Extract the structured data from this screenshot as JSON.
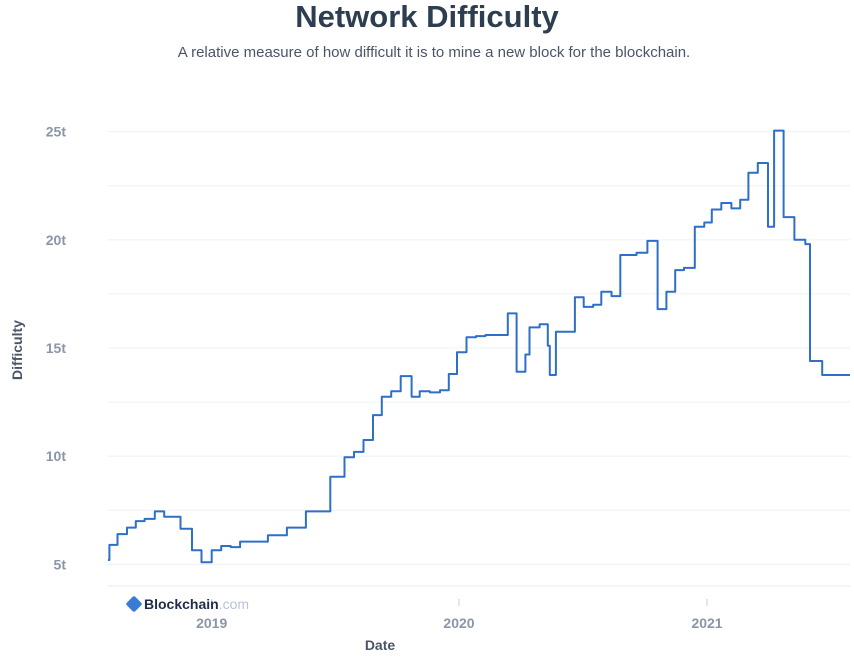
{
  "chart_data": {
    "type": "line",
    "title": "Network Difficulty",
    "subtitle": "A relative measure of how difficult it is to mine a new block for the blockchain.",
    "xlabel": "Date",
    "ylabel": "Difficulty",
    "ylim": [
      4,
      26
    ],
    "yticks": [
      {
        "value": 5,
        "label": "5t"
      },
      {
        "value": 10,
        "label": "10t"
      },
      {
        "value": 15,
        "label": "15t"
      },
      {
        "value": 20,
        "label": "20t"
      },
      {
        "value": 25,
        "label": "25t"
      }
    ],
    "xlim": [
      "2018-08-01",
      "2021-07-31"
    ],
    "xticks": [
      {
        "value": "2019-01-01",
        "label": "2019"
      },
      {
        "value": "2020-01-01",
        "label": "2020"
      },
      {
        "value": "2021-01-01",
        "label": "2021"
      }
    ],
    "grid": true,
    "line_color": "#2e6fc7",
    "series": [
      {
        "step": true,
        "points": [
          [
            "2018-08-01",
            5.2
          ],
          [
            "2018-08-03",
            5.9
          ],
          [
            "2018-08-15",
            6.4
          ],
          [
            "2018-08-29",
            6.7
          ],
          [
            "2018-09-11",
            7.0
          ],
          [
            "2018-09-24",
            7.1
          ],
          [
            "2018-10-09",
            7.45
          ],
          [
            "2018-10-23",
            7.2
          ],
          [
            "2018-11-16",
            6.65
          ],
          [
            "2018-12-03",
            5.65
          ],
          [
            "2018-12-17",
            5.1
          ],
          [
            "2019-01-01",
            5.65
          ],
          [
            "2019-01-15",
            5.85
          ],
          [
            "2019-01-29",
            5.8
          ],
          [
            "2019-02-12",
            6.05
          ],
          [
            "2019-03-25",
            6.35
          ],
          [
            "2019-04-22",
            6.7
          ],
          [
            "2019-05-20",
            7.45
          ],
          [
            "2019-06-13",
            7.45
          ],
          [
            "2019-06-25",
            9.05
          ],
          [
            "2019-07-16",
            9.95
          ],
          [
            "2019-07-30",
            10.2
          ],
          [
            "2019-08-13",
            10.75
          ],
          [
            "2019-08-27",
            11.9
          ],
          [
            "2019-09-09",
            12.75
          ],
          [
            "2019-09-23",
            13.0
          ],
          [
            "2019-10-07",
            13.7
          ],
          [
            "2019-10-23",
            12.75
          ],
          [
            "2019-11-04",
            13.0
          ],
          [
            "2019-11-19",
            12.95
          ],
          [
            "2019-12-04",
            13.05
          ],
          [
            "2019-12-17",
            13.8
          ],
          [
            "2019-12-29",
            14.8
          ],
          [
            "2020-01-12",
            15.5
          ],
          [
            "2020-01-26",
            15.55
          ],
          [
            "2020-02-09",
            15.6
          ],
          [
            "2020-03-13",
            16.6
          ],
          [
            "2020-03-26",
            13.9
          ],
          [
            "2020-04-08",
            14.7
          ],
          [
            "2020-04-14",
            15.95
          ],
          [
            "2020-04-29",
            16.1
          ],
          [
            "2020-05-11",
            15.1
          ],
          [
            "2020-05-14",
            13.75
          ],
          [
            "2020-05-23",
            15.75
          ],
          [
            "2020-06-20",
            17.35
          ],
          [
            "2020-07-03",
            16.9
          ],
          [
            "2020-07-17",
            17.0
          ],
          [
            "2020-07-29",
            17.6
          ],
          [
            "2020-08-13",
            17.4
          ],
          [
            "2020-08-26",
            19.3
          ],
          [
            "2020-09-19",
            19.4
          ],
          [
            "2020-10-05",
            19.95
          ],
          [
            "2020-10-20",
            16.8
          ],
          [
            "2020-11-02",
            17.6
          ],
          [
            "2020-11-15",
            18.6
          ],
          [
            "2020-11-28",
            18.7
          ],
          [
            "2020-12-14",
            20.6
          ],
          [
            "2020-12-28",
            20.8
          ],
          [
            "2021-01-08",
            21.4
          ],
          [
            "2021-01-22",
            21.7
          ],
          [
            "2021-02-06",
            21.45
          ],
          [
            "2021-02-19",
            21.85
          ],
          [
            "2021-03-03",
            23.1
          ],
          [
            "2021-03-17",
            23.55
          ],
          [
            "2021-04-01",
            20.6
          ],
          [
            "2021-04-10",
            25.05
          ],
          [
            "2021-04-24",
            21.05
          ],
          [
            "2021-05-10",
            20.0
          ],
          [
            "2021-05-26",
            19.8
          ],
          [
            "2021-06-02",
            14.4
          ],
          [
            "2021-06-20",
            13.75
          ]
        ]
      }
    ],
    "logo": {
      "name": "Blockchain",
      "suffix": ".com"
    }
  }
}
